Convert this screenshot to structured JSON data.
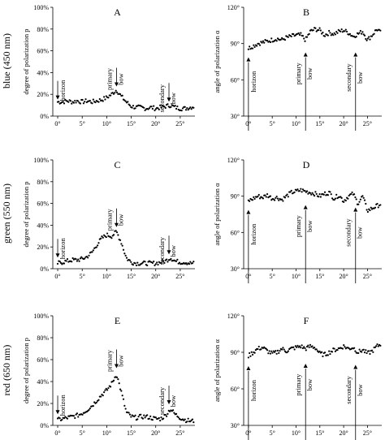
{
  "row_labels": [
    "blue (450 nm)",
    "green (550 nm)",
    "red (650 nm)"
  ],
  "annotations": {
    "horizon": "horizon",
    "primary_line1": "primary",
    "primary_line2": "bow",
    "secondary_line1": "secondary",
    "secondary_line2": "bow"
  },
  "chart_data": [
    {
      "panel": "A",
      "type": "scatter",
      "ylabel": "degree of polarization p",
      "x_ticks": [
        "0°",
        "5°",
        "10°",
        "15°",
        "20°",
        "25°"
      ],
      "x_tick_values": [
        0,
        5,
        10,
        15,
        20,
        25
      ],
      "xlim": [
        -1,
        28
      ],
      "y_ticks": [
        "0%",
        "20%",
        "40%",
        "60%",
        "80%",
        "100%"
      ],
      "y_tick_values": [
        0,
        20,
        40,
        60,
        80,
        100
      ],
      "ylim": [
        0,
        100
      ],
      "markers": [
        {
          "label": "horizon",
          "x": 0,
          "y": 13
        },
        {
          "label": "primary",
          "x": 12,
          "y": 25
        },
        {
          "label": "secondary",
          "x": 22.7,
          "y": 11
        }
      ],
      "series": [
        {
          "values_x": [
            0,
            1,
            2,
            3,
            4,
            5,
            6,
            7,
            8,
            9,
            10,
            11,
            12,
            13,
            14,
            15,
            16,
            17,
            18,
            19,
            20,
            21,
            22,
            23,
            24,
            25,
            26,
            27,
            28
          ],
          "values_y": [
            13,
            13,
            14,
            13,
            14,
            13,
            14,
            13,
            14,
            15,
            17,
            20,
            24,
            18,
            13,
            9,
            8,
            8,
            7,
            8,
            7,
            8,
            9,
            10,
            8,
            7,
            7,
            8,
            9
          ]
        }
      ]
    },
    {
      "panel": "B",
      "type": "scatter",
      "ylabel": "angle of polarization α",
      "x_ticks": [
        "0°",
        "5°",
        "10°",
        "15°",
        "20°",
        "25°"
      ],
      "x_tick_values": [
        0,
        5,
        10,
        15,
        20,
        25
      ],
      "xlim": [
        -1,
        28
      ],
      "y_ticks": [
        "30°",
        "60°",
        "90°",
        "120°"
      ],
      "y_tick_values": [
        30,
        60,
        90,
        120
      ],
      "ylim": [
        30,
        120
      ],
      "markers": [
        {
          "label": "horizon",
          "x": 0,
          "y": 84
        },
        {
          "label": "primary",
          "x": 12,
          "y": 88
        },
        {
          "label": "secondary",
          "x": 22.5,
          "y": 88
        }
      ],
      "series": [
        {
          "values_x": [
            0,
            1,
            2,
            3,
            4,
            5,
            6,
            7,
            8,
            9,
            10,
            11,
            12,
            13,
            14,
            15,
            16,
            17,
            18,
            19,
            20,
            21,
            22,
            23,
            24,
            25,
            26,
            27,
            28
          ],
          "values_y": [
            86,
            88,
            90,
            91,
            92,
            93,
            94,
            93,
            95,
            96,
            97,
            97,
            93,
            100,
            102,
            101,
            97,
            99,
            98,
            100,
            101,
            99,
            96,
            98,
            100,
            93,
            97,
            102,
            98
          ]
        }
      ]
    },
    {
      "panel": "C",
      "type": "scatter",
      "ylabel": "degree of polarization p",
      "x_ticks": [
        "0°",
        "5°",
        "10°",
        "15°",
        "20°",
        "25°"
      ],
      "x_tick_values": [
        0,
        5,
        10,
        15,
        20,
        25
      ],
      "xlim": [
        -1,
        28
      ],
      "y_ticks": [
        "0%",
        "20%",
        "40%",
        "60%",
        "80%",
        "100%"
      ],
      "y_tick_values": [
        0,
        20,
        40,
        60,
        80,
        100
      ],
      "ylim": [
        0,
        100
      ],
      "markers": [
        {
          "label": "horizon",
          "x": 0,
          "y": 8
        },
        {
          "label": "primary",
          "x": 12,
          "y": 36
        },
        {
          "label": "secondary",
          "x": 22.7,
          "y": 11
        }
      ],
      "series": [
        {
          "values_x": [
            0,
            1,
            2,
            3,
            4,
            5,
            6,
            7,
            8,
            9,
            10,
            11,
            12,
            13,
            14,
            15,
            16,
            17,
            18,
            19,
            20,
            21,
            22,
            23,
            24,
            25,
            26,
            27,
            28
          ],
          "values_y": [
            5,
            6,
            7,
            8,
            8,
            9,
            11,
            15,
            22,
            28,
            31,
            30,
            34,
            24,
            10,
            6,
            5,
            5,
            5,
            5,
            5,
            6,
            7,
            10,
            7,
            6,
            6,
            5,
            5
          ]
        }
      ]
    },
    {
      "panel": "D",
      "type": "scatter",
      "ylabel": "angle of polarization α",
      "x_ticks": [
        "0°",
        "5°",
        "10°",
        "15°",
        "20°",
        "25°"
      ],
      "x_tick_values": [
        0,
        5,
        10,
        15,
        20,
        25
      ],
      "xlim": [
        -1,
        28
      ],
      "y_ticks": [
        "30°",
        "60°",
        "90°",
        "120°"
      ],
      "y_tick_values": [
        30,
        60,
        90,
        120
      ],
      "ylim": [
        30,
        120
      ],
      "markers": [
        {
          "label": "horizon",
          "x": 0,
          "y": 84
        },
        {
          "label": "primary",
          "x": 12,
          "y": 88
        },
        {
          "label": "secondary",
          "x": 22.5,
          "y": 86
        }
      ],
      "series": [
        {
          "values_x": [
            0,
            1,
            2,
            3,
            4,
            5,
            6,
            7,
            8,
            9,
            10,
            11,
            12,
            13,
            14,
            15,
            16,
            17,
            18,
            19,
            20,
            21,
            22,
            23,
            24,
            25,
            26,
            27,
            28
          ],
          "values_y": [
            86,
            88,
            90,
            89,
            91,
            88,
            89,
            87,
            90,
            93,
            94,
            95,
            94,
            93,
            92,
            90,
            92,
            93,
            88,
            91,
            86,
            90,
            92,
            84,
            90,
            78,
            80,
            82,
            84
          ]
        }
      ]
    },
    {
      "panel": "E",
      "type": "scatter",
      "ylabel": "degree of polarization p",
      "x_ticks": [
        "0°",
        "5°",
        "10°",
        "15°",
        "20°",
        "25°"
      ],
      "x_tick_values": [
        0,
        5,
        10,
        15,
        20,
        25
      ],
      "xlim": [
        -1,
        28
      ],
      "y_ticks": [
        "0%",
        "20%",
        "40%",
        "60%",
        "80%",
        "100%"
      ],
      "y_tick_values": [
        0,
        20,
        40,
        60,
        80,
        100
      ],
      "ylim": [
        0,
        100
      ],
      "markers": [
        {
          "label": "horizon",
          "x": 0,
          "y": 8
        },
        {
          "label": "primary",
          "x": 12,
          "y": 50
        },
        {
          "label": "secondary",
          "x": 22.7,
          "y": 17
        }
      ],
      "series": [
        {
          "values_x": [
            0,
            1,
            2,
            3,
            4,
            5,
            6,
            7,
            8,
            9,
            10,
            11,
            12,
            13,
            14,
            15,
            16,
            17,
            18,
            19,
            20,
            21,
            22,
            23,
            24,
            25,
            26,
            27,
            28
          ],
          "values_y": [
            5,
            6,
            7,
            8,
            9,
            11,
            14,
            18,
            23,
            28,
            32,
            38,
            47,
            30,
            12,
            8,
            7,
            8,
            8,
            7,
            6,
            6,
            9,
            15,
            10,
            7,
            5,
            4,
            4
          ]
        }
      ]
    },
    {
      "panel": "F",
      "type": "scatter",
      "ylabel": "angle of polarization α",
      "x_ticks": [
        "0°",
        "5°",
        "10°",
        "15°",
        "20°",
        "25°"
      ],
      "x_tick_values": [
        0,
        5,
        10,
        15,
        20,
        25
      ],
      "xlim": [
        -1,
        28
      ],
      "y_ticks": [
        "30°",
        "60°",
        "90°",
        "120°"
      ],
      "y_tick_values": [
        30,
        60,
        90,
        120
      ],
      "ylim": [
        30,
        120
      ],
      "markers": [
        {
          "label": "horizon",
          "x": 0,
          "y": 84
        },
        {
          "label": "primary",
          "x": 12,
          "y": 86
        },
        {
          "label": "secondary",
          "x": 22.5,
          "y": 85
        }
      ],
      "series": [
        {
          "values_x": [
            0,
            1,
            2,
            3,
            4,
            5,
            6,
            7,
            8,
            9,
            10,
            11,
            12,
            13,
            14,
            15,
            16,
            17,
            18,
            19,
            20,
            21,
            22,
            23,
            24,
            25,
            26,
            27,
            28
          ],
          "values_y": [
            87,
            90,
            93,
            94,
            91,
            89,
            90,
            93,
            91,
            93,
            94,
            95,
            93,
            95,
            94,
            89,
            88,
            90,
            92,
            93,
            95,
            93,
            94,
            90,
            92,
            89,
            91,
            95,
            97
          ]
        }
      ]
    }
  ]
}
